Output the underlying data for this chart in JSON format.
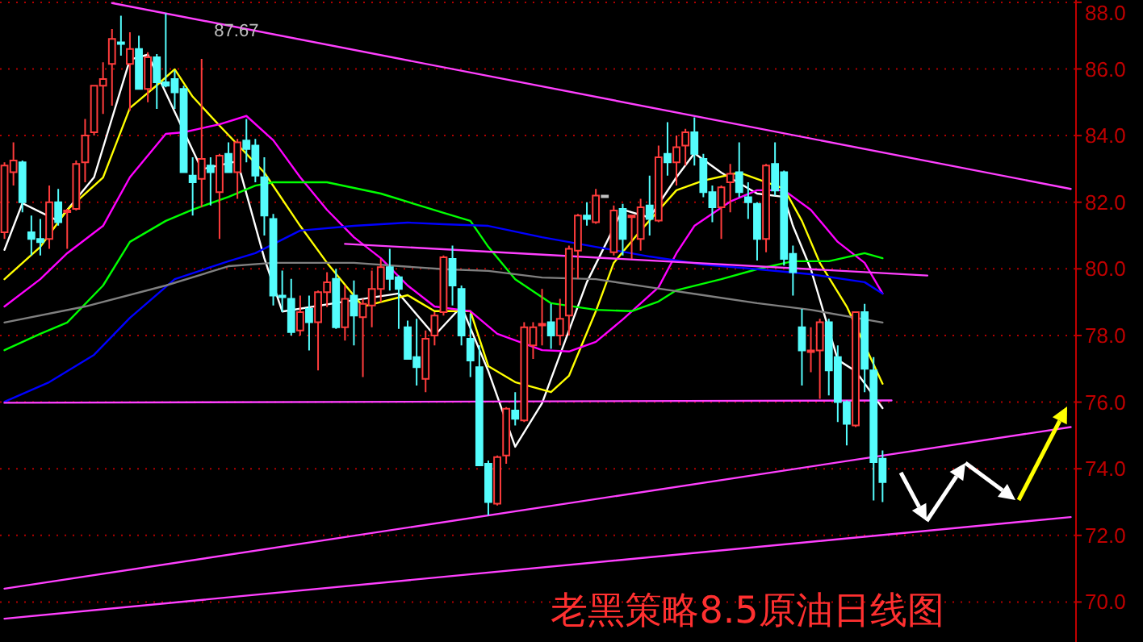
{
  "chart_data": {
    "type": "candlestick",
    "title": "老黑策略8.5原油日线图",
    "categories": [
      null,
      null,
      null,
      null,
      null,
      null,
      null,
      null,
      null,
      null,
      null,
      null,
      null,
      null,
      null,
      null,
      null,
      null,
      null,
      null,
      null,
      null,
      null,
      null,
      null,
      null,
      null,
      null,
      null,
      null,
      null,
      null,
      null,
      null,
      null,
      null,
      null,
      null,
      null,
      null,
      null,
      null,
      null,
      null,
      null,
      null,
      null,
      null,
      null,
      null,
      null,
      null,
      null,
      null,
      null,
      null,
      null,
      null,
      null,
      null,
      null,
      null,
      null,
      null,
      null,
      null,
      null,
      null,
      null,
      null,
      null,
      null,
      null,
      null,
      null,
      null,
      null,
      null,
      null,
      null,
      null,
      null,
      null,
      null,
      null,
      null,
      null,
      null,
      null,
      null,
      null,
      null,
      null,
      null,
      null,
      null,
      null,
      null,
      null,
      null,
      null,
      null,
      null,
      null,
      null,
      null,
      null,
      null,
      null,
      null,
      null,
      null,
      null,
      null,
      null,
      null,
      null,
      null,
      null,
      null
    ],
    "ohlc": [
      [
        81.1,
        83.2,
        80.9,
        83.1
      ],
      [
        82.9,
        83.8,
        82.5,
        83.25
      ],
      [
        83.2,
        83.25,
        81.7,
        82.0
      ],
      [
        81.1,
        81.6,
        80.4,
        80.9
      ],
      [
        80.9,
        81.5,
        80.4,
        80.8
      ],
      [
        80.9,
        82.5,
        80.6,
        82.0
      ],
      [
        82.0,
        82.4,
        81.3,
        81.4
      ],
      [
        81.7,
        81.8,
        80.6,
        81.75
      ],
      [
        81.8,
        83.25,
        81.75,
        83.15
      ],
      [
        83.2,
        84.5,
        82.6,
        84.0
      ],
      [
        84.1,
        85.5,
        84.0,
        85.5
      ],
      [
        85.5,
        86.2,
        84.65,
        85.7
      ],
      [
        86.15,
        87.2,
        84.9,
        86.9
      ],
      [
        86.8,
        87.6,
        86.4,
        86.75
      ],
      [
        86.15,
        87.1,
        84.75,
        86.6
      ],
      [
        86.6,
        87.0,
        85.4,
        85.4
      ],
      [
        85.4,
        86.5,
        85.0,
        86.35
      ],
      [
        86.35,
        86.45,
        84.8,
        85.6
      ],
      [
        85.6,
        87.67,
        85.45,
        85.5
      ],
      [
        85.7,
        85.95,
        84.8,
        85.3
      ],
      [
        85.4,
        85.5,
        82.9,
        82.9
      ],
      [
        82.8,
        83.35,
        81.6,
        82.6
      ],
      [
        82.7,
        86.3,
        81.85,
        83.3
      ],
      [
        83.1,
        83.35,
        81.9,
        82.9
      ],
      [
        82.3,
        83.45,
        80.9,
        83.4
      ],
      [
        83.45,
        83.8,
        82.9,
        82.9
      ],
      [
        82.9,
        83.9,
        82.1,
        83.8
      ],
      [
        83.85,
        84.5,
        83.2,
        83.6
      ],
      [
        83.7,
        83.9,
        82.6,
        82.8
      ],
      [
        82.75,
        83.35,
        81.0,
        81.6
      ],
      [
        81.5,
        81.65,
        78.9,
        79.2
      ],
      [
        79.2,
        79.95,
        78.7,
        79.15
      ],
      [
        79.1,
        79.7,
        78.0,
        78.1
      ],
      [
        78.15,
        79.2,
        78.0,
        78.7
      ],
      [
        78.8,
        79.2,
        77.55,
        78.4
      ],
      [
        78.4,
        79.35,
        76.95,
        79.3
      ],
      [
        79.3,
        79.9,
        78.85,
        79.6
      ],
      [
        79.7,
        80.0,
        78.2,
        78.25
      ],
      [
        78.25,
        79.5,
        77.85,
        79.1
      ],
      [
        79.2,
        79.65,
        77.7,
        78.6
      ],
      [
        78.55,
        79.1,
        76.75,
        78.95
      ],
      [
        78.9,
        79.95,
        78.25,
        79.4
      ],
      [
        79.4,
        80.3,
        79.0,
        80.05
      ],
      [
        80.05,
        80.6,
        79.35,
        79.7
      ],
      [
        79.75,
        79.8,
        78.2,
        79.4
      ],
      [
        78.25,
        78.45,
        77.3,
        77.3
      ],
      [
        77.35,
        78.5,
        76.5,
        77.05
      ],
      [
        76.7,
        78.15,
        76.3,
        77.9
      ],
      [
        78.0,
        78.7,
        77.7,
        78.6
      ],
      [
        78.7,
        80.4,
        78.6,
        80.35
      ],
      [
        80.3,
        80.7,
        78.9,
        79.5
      ],
      [
        79.4,
        79.5,
        77.7,
        78.0
      ],
      [
        77.9,
        78.65,
        76.75,
        77.25
      ],
      [
        77.05,
        77.7,
        74.1,
        74.1
      ],
      [
        74.15,
        74.25,
        72.6,
        73.0
      ],
      [
        72.95,
        74.4,
        72.9,
        74.35
      ],
      [
        74.4,
        75.85,
        74.15,
        75.8
      ],
      [
        75.75,
        76.3,
        75.3,
        75.5
      ],
      [
        75.45,
        78.4,
        75.4,
        78.25
      ],
      [
        77.7,
        78.4,
        77.3,
        78.25
      ],
      [
        78.3,
        79.4,
        77.7,
        78.35
      ],
      [
        78.4,
        78.95,
        77.6,
        78.0
      ],
      [
        78.0,
        79.1,
        77.7,
        78.5
      ],
      [
        78.6,
        80.7,
        78.0,
        80.6
      ],
      [
        80.55,
        81.65,
        79.7,
        81.6
      ],
      [
        81.6,
        82.0,
        81.3,
        81.5
      ],
      [
        81.4,
        82.4,
        81.35,
        82.2
      ],
      [
        82.2,
        82.2,
        82.2,
        82.2
      ],
      [
        80.5,
        81.9,
        80.4,
        81.75
      ],
      [
        81.8,
        81.95,
        80.4,
        80.9
      ],
      [
        81.55,
        81.6,
        80.3,
        81.6
      ],
      [
        80.9,
        82.1,
        80.55,
        81.85
      ],
      [
        81.9,
        82.8,
        81.0,
        81.5
      ],
      [
        81.45,
        83.7,
        81.4,
        83.35
      ],
      [
        83.45,
        84.4,
        82.8,
        83.2
      ],
      [
        83.2,
        84.0,
        82.5,
        83.65
      ],
      [
        83.7,
        84.2,
        83.1,
        84.1
      ],
      [
        84.1,
        84.55,
        83.1,
        83.45
      ],
      [
        83.3,
        83.45,
        82.15,
        82.3
      ],
      [
        82.3,
        82.5,
        81.4,
        81.85
      ],
      [
        81.85,
        82.5,
        80.9,
        82.45
      ],
      [
        82.6,
        83.15,
        81.7,
        82.85
      ],
      [
        82.9,
        83.8,
        82.15,
        82.3
      ],
      [
        82.15,
        82.6,
        81.5,
        82.0
      ],
      [
        81.95,
        82.0,
        80.25,
        80.9
      ],
      [
        80.9,
        83.15,
        80.5,
        83.1
      ],
      [
        83.15,
        83.8,
        82.2,
        82.35
      ],
      [
        82.9,
        82.95,
        80.1,
        80.3
      ],
      [
        80.45,
        80.7,
        79.2,
        79.9
      ],
      [
        78.25,
        78.8,
        76.5,
        77.55
      ],
      [
        77.5,
        78.25,
        76.9,
        77.55
      ],
      [
        77.55,
        78.5,
        76.1,
        78.4
      ],
      [
        78.4,
        78.5,
        76.2,
        76.95
      ],
      [
        77.35,
        77.7,
        75.4,
        76.0
      ],
      [
        76.0,
        76.05,
        74.7,
        75.35
      ],
      [
        75.3,
        78.7,
        75.25,
        78.7
      ],
      [
        78.7,
        78.95,
        76.3,
        77.0
      ],
      [
        76.95,
        77.35,
        73.05,
        74.2
      ],
      [
        74.3,
        74.55,
        73.0,
        73.6
      ],
      null,
      null,
      null,
      null,
      null,
      null,
      null,
      null,
      null,
      null,
      null,
      null,
      null,
      null,
      null,
      null,
      null,
      null,
      null,
      null,
      null
    ],
    "series": [
      {
        "type": "line",
        "color": "#ffffff",
        "values": [
          80.57,
          null,
          81.97,
          null,
          null,
          null,
          81.44,
          null,
          null,
          null,
          82.75,
          null,
          null,
          null,
          86.28,
          null,
          86.43,
          null,
          null,
          null,
          null,
          null,
          82.99,
          null,
          null,
          null,
          83.23,
          null,
          null,
          80.32,
          null,
          78.72,
          null,
          null,
          null,
          null,
          null,
          null,
          79.02,
          null,
          null,
          null,
          null,
          null,
          79.26,
          null,
          null,
          null,
          78.0,
          null,
          null,
          78.87,
          null,
          null,
          76.93,
          null,
          null,
          74.66,
          null,
          null,
          75.97,
          null,
          null,
          null,
          null,
          79.6,
          null,
          null,
          null,
          81.78,
          null,
          null,
          81.54,
          null,
          null,
          82.75,
          null,
          83.47,
          null,
          null,
          82.89,
          null,
          null,
          null,
          82.26,
          null,
          null,
          82.16,
          81.29,
          null,
          79.99,
          null,
          null,
          77.27,
          null,
          76.93,
          null,
          null,
          75.82,
          null,
          null,
          null,
          null,
          null,
          null,
          null,
          null,
          null,
          null,
          null,
          null,
          null,
          null,
          null,
          null,
          null,
          null,
          null,
          null,
          null
        ]
      },
      {
        "type": "line",
        "color": "#ffff00",
        "values": [
          79.69,
          null,
          null,
          null,
          80.66,
          null,
          null,
          81.77,
          null,
          null,
          null,
          82.74,
          null,
          null,
          84.83,
          null,
          null,
          85.51,
          null,
          85.99,
          null,
          85.17,
          null,
          null,
          84.3,
          null,
          null,
          null,
          null,
          82.89,
          null,
          null,
          null,
          81.29,
          null,
          null,
          80.18,
          null,
          null,
          null,
          78.87,
          null,
          null,
          null,
          null,
          79.21,
          null,
          null,
          78.73,
          null,
          null,
          null,
          78.73,
          null,
          77.08,
          null,
          null,
          76.6,
          null,
          null,
          null,
          76.3,
          null,
          76.79,
          null,
          null,
          78.73,
          null,
          80.18,
          null,
          null,
          81.15,
          null,
          null,
          null,
          82.36,
          null,
          null,
          82.65,
          null,
          null,
          null,
          82.89,
          null,
          null,
          null,
          null,
          82.41,
          null,
          81.44,
          null,
          80.18,
          null,
          null,
          78.87,
          null,
          null,
          null,
          76.55,
          null,
          null,
          null,
          null,
          null,
          null,
          null,
          null,
          null,
          null,
          null,
          null,
          null,
          null,
          null,
          null,
          null,
          null,
          null,
          null,
          null
        ]
      },
      {
        "type": "line",
        "color": "#ff00ff",
        "values": [
          78.87,
          null,
          null,
          null,
          79.69,
          null,
          null,
          80.47,
          null,
          null,
          null,
          81.29,
          null,
          null,
          82.75,
          null,
          null,
          null,
          84.05,
          null,
          84.1,
          null,
          null,
          null,
          84.34,
          null,
          null,
          84.59,
          null,
          null,
          83.86,
          null,
          null,
          82.75,
          null,
          null,
          81.77,
          null,
          null,
          80.95,
          null,
          null,
          80.32,
          null,
          null,
          79.5,
          null,
          null,
          78.87,
          null,
          null,
          null,
          78.73,
          null,
          null,
          78.05,
          null,
          null,
          null,
          null,
          77.56,
          null,
          null,
          77.52,
          null,
          null,
          77.81,
          null,
          null,
          78.48,
          null,
          null,
          null,
          79.45,
          null,
          80.47,
          null,
          81.29,
          null,
          null,
          null,
          82.02,
          null,
          null,
          82.36,
          null,
          null,
          82.36,
          null,
          null,
          81.77,
          null,
          null,
          80.81,
          null,
          null,
          80.18,
          null,
          79.26,
          null,
          null,
          null,
          null,
          null,
          null,
          null,
          null,
          null,
          null,
          null,
          null,
          null,
          null,
          null,
          null,
          null,
          null,
          null,
          null,
          null
        ]
      },
      {
        "type": "line",
        "color": "#00ff00",
        "values": [
          77.56,
          null,
          null,
          null,
          78.05,
          null,
          null,
          78.39,
          null,
          null,
          null,
          79.5,
          null,
          null,
          80.81,
          null,
          null,
          null,
          81.44,
          null,
          null,
          81.78,
          null,
          null,
          null,
          82.16,
          null,
          null,
          82.5,
          null,
          82.6,
          null,
          null,
          null,
          null,
          null,
          82.6,
          null,
          null,
          null,
          null,
          null,
          82.26,
          null,
          null,
          null,
          null,
          null,
          null,
          81.68,
          null,
          null,
          81.44,
          null,
          80.66,
          null,
          null,
          79.69,
          null,
          null,
          null,
          78.97,
          null,
          null,
          null,
          null,
          78.77,
          null,
          null,
          null,
          78.73,
          null,
          null,
          79.02,
          null,
          79.36,
          null,
          null,
          null,
          null,
          79.69,
          null,
          null,
          null,
          79.99,
          null,
          null,
          null,
          80.23,
          null,
          null,
          null,
          80.23,
          null,
          null,
          null,
          80.47,
          null,
          80.32,
          null,
          null,
          null,
          null,
          null,
          null,
          null,
          null,
          null,
          null,
          null,
          null,
          null,
          null,
          null,
          null,
          null,
          null,
          null,
          null,
          null
        ]
      },
      {
        "type": "line",
        "color": "#0000ff",
        "values": [
          76.01,
          null,
          null,
          null,
          null,
          76.6,
          null,
          null,
          null,
          null,
          77.42,
          null,
          null,
          null,
          78.53,
          null,
          null,
          null,
          null,
          79.69,
          null,
          null,
          null,
          null,
          null,
          80.23,
          null,
          null,
          80.47,
          null,
          null,
          null,
          null,
          81.15,
          null,
          null,
          null,
          null,
          null,
          81.29,
          null,
          null,
          null,
          null,
          null,
          81.39,
          null,
          null,
          null,
          81.34,
          null,
          null,
          null,
          null,
          81.29,
          null,
          null,
          null,
          null,
          null,
          80.95,
          null,
          null,
          null,
          null,
          null,
          80.66,
          null,
          null,
          null,
          null,
          null,
          80.37,
          null,
          null,
          null,
          null,
          null,
          80.13,
          null,
          null,
          null,
          null,
          null,
          79.99,
          null,
          null,
          null,
          null,
          null,
          79.84,
          null,
          null,
          null,
          null,
          null,
          79.6,
          null,
          79.26,
          null,
          null,
          null,
          null,
          null,
          null,
          null,
          null,
          null,
          null,
          null,
          null,
          null,
          null,
          null,
          null,
          null,
          null,
          null,
          null,
          null
        ]
      },
      {
        "type": "line",
        "color": "#808080",
        "values": [
          78.39,
          null,
          null,
          null,
          null,
          null,
          null,
          null,
          null,
          78.87,
          null,
          null,
          null,
          null,
          null,
          null,
          null,
          null,
          79.5,
          null,
          null,
          null,
          null,
          null,
          null,
          80.08,
          null,
          null,
          null,
          null,
          80.18,
          null,
          null,
          null,
          null,
          null,
          null,
          null,
          null,
          80.18,
          null,
          null,
          null,
          null,
          null,
          null,
          null,
          null,
          null,
          79.99,
          null,
          null,
          null,
          null,
          79.94,
          null,
          null,
          null,
          null,
          null,
          79.74,
          null,
          null,
          null,
          null,
          null,
          79.69,
          null,
          null,
          null,
          null,
          null,
          79.45,
          null,
          null,
          null,
          null,
          null,
          79.21,
          null,
          null,
          null,
          null,
          null,
          78.97,
          null,
          null,
          null,
          null,
          null,
          78.77,
          null,
          null,
          null,
          null,
          null,
          null,
          null,
          78.39,
          null,
          null,
          null,
          null,
          null,
          null,
          null,
          null,
          null,
          null,
          null,
          null,
          null,
          null,
          null,
          null,
          null,
          null,
          null,
          null,
          null
        ]
      },
      {
        "type": "line",
        "color": "#ff40ff",
        "values": [
          null,
          null,
          null,
          null,
          null,
          null,
          null,
          null,
          null,
          null,
          null,
          null,
          87.98,
          null,
          null,
          null,
          null,
          null,
          null,
          null,
          null,
          null,
          null,
          null,
          null,
          null,
          null,
          null,
          null,
          null,
          null,
          null,
          null,
          null,
          null,
          null,
          null,
          null,
          null,
          null,
          null,
          null,
          null,
          null,
          null,
          null,
          null,
          null,
          null,
          null,
          null,
          null,
          null,
          null,
          null,
          null,
          null,
          null,
          null,
          null,
          null,
          null,
          null,
          null,
          null,
          null,
          null,
          null,
          null,
          null,
          null,
          null,
          null,
          null,
          null,
          null,
          null,
          null,
          null,
          null,
          null,
          null,
          null,
          null,
          null,
          null,
          null,
          null,
          null,
          null,
          null,
          null,
          null,
          null,
          null,
          null,
          null,
          null,
          null,
          null,
          null,
          null,
          null,
          null,
          null,
          null,
          null,
          null,
          null,
          null,
          null,
          null,
          null,
          null,
          null,
          null,
          null,
          null,
          null,
          82.4
        ]
      },
      {
        "type": "line",
        "color": "#ff40ff",
        "values": [
          75.98,
          null,
          null,
          null,
          null,
          null,
          null,
          null,
          null,
          null,
          null,
          null,
          null,
          null,
          null,
          null,
          null,
          null,
          null,
          null,
          null,
          null,
          null,
          null,
          null,
          null,
          null,
          null,
          null,
          null,
          null,
          null,
          null,
          null,
          null,
          null,
          null,
          null,
          null,
          null,
          null,
          null,
          null,
          null,
          null,
          null,
          null,
          null,
          null,
          null,
          null,
          null,
          null,
          null,
          null,
          null,
          null,
          null,
          null,
          null,
          null,
          null,
          null,
          null,
          null,
          null,
          null,
          null,
          null,
          null,
          null,
          null,
          null,
          null,
          null,
          null,
          null,
          null,
          null,
          null,
          null,
          null,
          null,
          null,
          null,
          null,
          null,
          null,
          null,
          null,
          null,
          null,
          null,
          null,
          null,
          null,
          null,
          null,
          null,
          76.05,
          null,
          null,
          null,
          null,
          null,
          null,
          null,
          null,
          null,
          null,
          null,
          null,
          null,
          null,
          null,
          null,
          null,
          null,
          null,
          null
        ]
      },
      {
        "type": "line",
        "color": "#ff40ff",
        "values": [
          70.4,
          null,
          null,
          null,
          null,
          null,
          null,
          null,
          null,
          null,
          null,
          null,
          null,
          null,
          null,
          null,
          null,
          null,
          null,
          null,
          null,
          null,
          null,
          null,
          null,
          null,
          null,
          null,
          null,
          null,
          null,
          null,
          null,
          null,
          null,
          null,
          null,
          null,
          null,
          null,
          null,
          null,
          null,
          null,
          null,
          null,
          null,
          null,
          null,
          null,
          null,
          null,
          null,
          null,
          null,
          null,
          null,
          null,
          null,
          null,
          null,
          null,
          null,
          null,
          null,
          null,
          null,
          null,
          null,
          null,
          null,
          null,
          null,
          null,
          null,
          null,
          null,
          null,
          null,
          null,
          null,
          null,
          null,
          null,
          null,
          null,
          null,
          null,
          null,
          null,
          null,
          null,
          null,
          null,
          null,
          null,
          null,
          null,
          null,
          null,
          null,
          null,
          null,
          null,
          null,
          null,
          null,
          null,
          null,
          null,
          null,
          null,
          null,
          null,
          null,
          null,
          null,
          null,
          null,
          75.25
        ]
      },
      {
        "type": "line",
        "color": "#ff40ff",
        "values": [
          69.5,
          null,
          null,
          null,
          null,
          null,
          null,
          null,
          null,
          null,
          null,
          null,
          null,
          null,
          null,
          null,
          null,
          null,
          null,
          null,
          null,
          null,
          null,
          null,
          null,
          null,
          null,
          null,
          null,
          null,
          null,
          null,
          null,
          null,
          null,
          null,
          null,
          null,
          null,
          null,
          null,
          null,
          null,
          null,
          null,
          null,
          null,
          null,
          null,
          null,
          null,
          null,
          null,
          null,
          null,
          null,
          null,
          null,
          null,
          null,
          null,
          null,
          null,
          null,
          null,
          null,
          null,
          null,
          null,
          null,
          null,
          null,
          null,
          null,
          null,
          null,
          null,
          null,
          null,
          null,
          null,
          null,
          null,
          null,
          null,
          null,
          null,
          null,
          null,
          null,
          null,
          null,
          null,
          null,
          null,
          null,
          null,
          null,
          null,
          null,
          null,
          null,
          null,
          null,
          null,
          null,
          null,
          null,
          null,
          null,
          null,
          null,
          null,
          null,
          null,
          null,
          null,
          null,
          null,
          72.55
        ]
      },
      {
        "type": "line",
        "color": "#ff40ff",
        "values": [
          null,
          null,
          null,
          null,
          null,
          null,
          null,
          null,
          null,
          null,
          null,
          null,
          null,
          null,
          null,
          null,
          null,
          null,
          null,
          null,
          null,
          null,
          null,
          null,
          null,
          null,
          null,
          null,
          null,
          null,
          null,
          null,
          null,
          null,
          null,
          null,
          null,
          null,
          80.75,
          null,
          null,
          null,
          null,
          null,
          null,
          null,
          null,
          null,
          null,
          null,
          null,
          null,
          null,
          null,
          null,
          null,
          null,
          null,
          null,
          null,
          null,
          null,
          null,
          null,
          null,
          null,
          null,
          null,
          null,
          null,
          null,
          null,
          null,
          null,
          null,
          null,
          null,
          null,
          null,
          null,
          null,
          null,
          null,
          null,
          null,
          null,
          null,
          null,
          null,
          null,
          null,
          null,
          null,
          null,
          null,
          null,
          null,
          null,
          null,
          null,
          null,
          null,
          null,
          79.8,
          null,
          null,
          null,
          null,
          null,
          null,
          null,
          null,
          null,
          null,
          null,
          null,
          null,
          null,
          null,
          null
        ]
      }
    ],
    "ylim": [
      68.8,
      88.07
    ],
    "yticks": [
      {
        "value": 70,
        "label": "70.0"
      },
      {
        "value": 72,
        "label": "72.0"
      },
      {
        "value": 74,
        "label": "74.0"
      },
      {
        "value": 76,
        "label": "76.0"
      },
      {
        "value": 78,
        "label": "78.0"
      },
      {
        "value": 80,
        "label": "80.0"
      },
      {
        "value": 82,
        "label": "82.0"
      },
      {
        "value": 84,
        "label": "84.0"
      },
      {
        "value": 86,
        "label": "86.0"
      },
      {
        "value": 88,
        "label": "88.0"
      }
    ],
    "grid": "y",
    "annotations": [
      "87.67"
    ]
  }
}
